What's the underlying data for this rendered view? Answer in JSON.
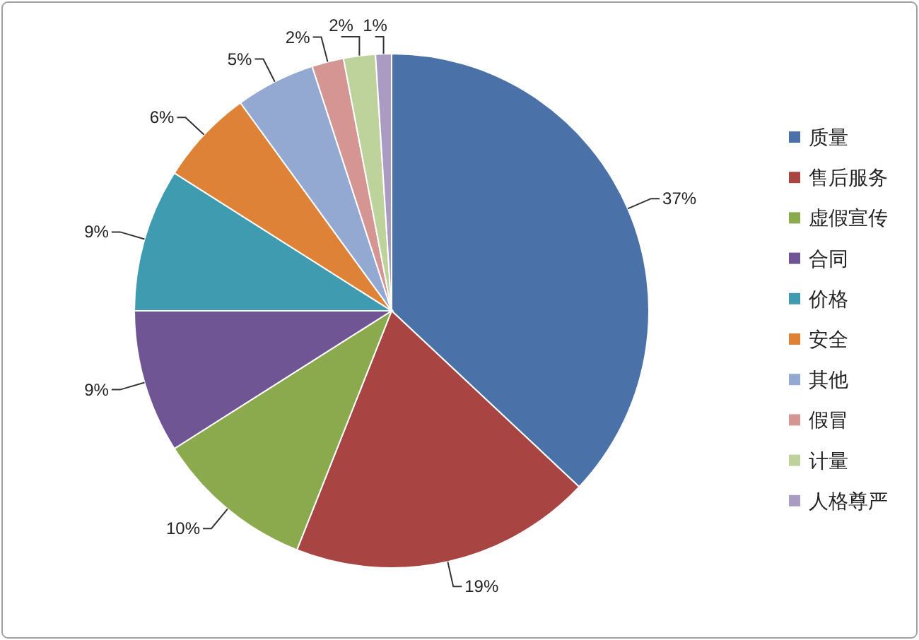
{
  "chart_data": {
    "type": "pie",
    "categories": [
      "质量",
      "售后服务",
      "虚假宣传",
      "合同",
      "价格",
      "安全",
      "其他",
      "假冒",
      "计量",
      "人格尊严"
    ],
    "values": [
      37,
      19,
      10,
      9,
      9,
      6,
      5,
      2,
      2,
      1
    ],
    "value_labels": [
      "37%",
      "19%",
      "10%",
      "9%",
      "9%",
      "6%",
      "5%",
      "2%",
      "2%",
      "1%"
    ],
    "colors": [
      "#4a72a8",
      "#a84543",
      "#8ba94d",
      "#6f5594",
      "#3f9bb0",
      "#dd8236",
      "#93a9d1",
      "#d49593",
      "#bdd39b",
      "#a99bc2"
    ],
    "legend": "right"
  }
}
